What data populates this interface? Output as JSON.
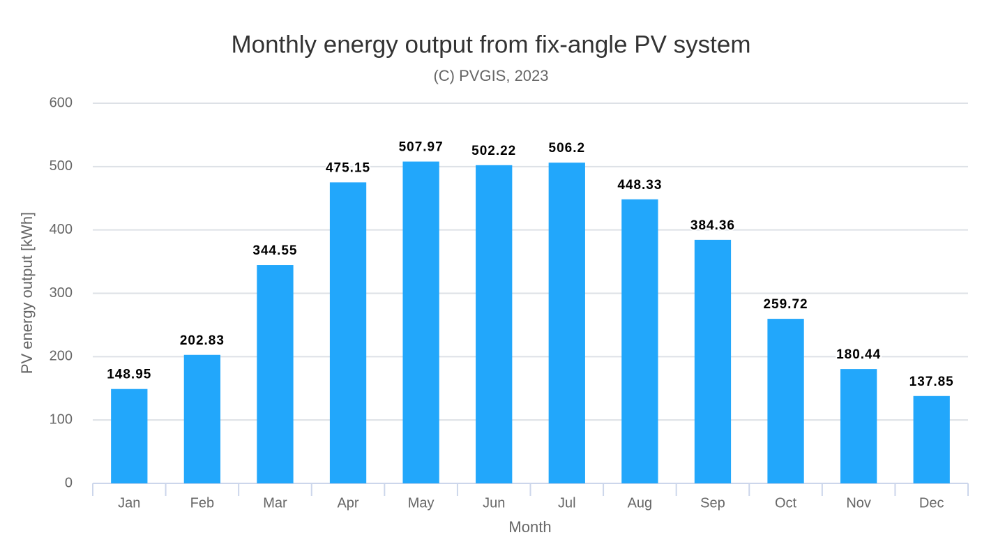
{
  "chart_data": {
    "type": "bar",
    "title": "Monthly energy output from fix-angle PV system",
    "subtitle": "(C) PVGIS, 2023",
    "x_label": "Month",
    "y_label": "PV energy output [kWh]",
    "categories": [
      "Jan",
      "Feb",
      "Mar",
      "Apr",
      "May",
      "Jun",
      "Jul",
      "Aug",
      "Sep",
      "Oct",
      "Nov",
      "Dec"
    ],
    "values": [
      148.95,
      202.83,
      344.55,
      475.15,
      507.97,
      502.22,
      506.2,
      448.33,
      384.36,
      259.72,
      180.44,
      137.85
    ],
    "color": "#22a7fb",
    "ylim": [
      0,
      600
    ],
    "yticks": [
      0,
      100,
      200,
      300,
      400,
      500,
      600
    ],
    "grid": true
  }
}
